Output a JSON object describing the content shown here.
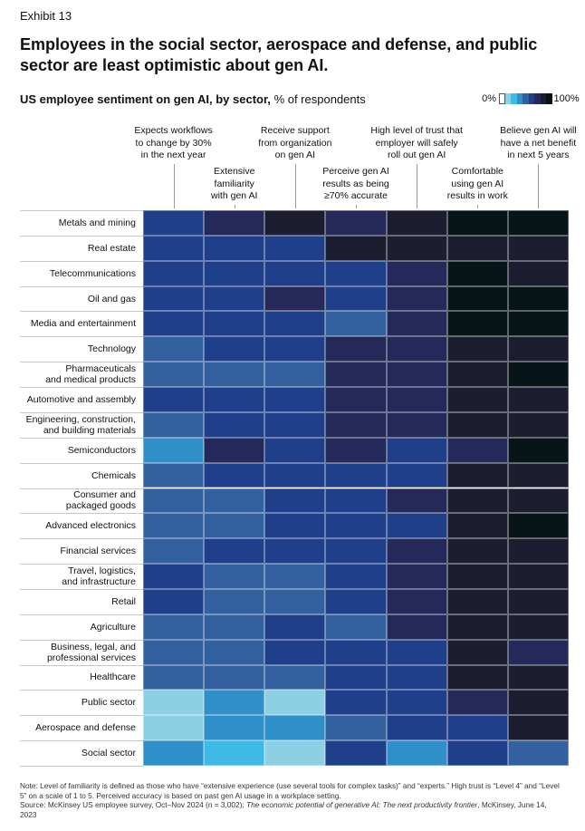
{
  "chart_data": {
    "type": "heatmap",
    "exhibit": "Exhibit 13",
    "title": "Employees in the social sector, aerospace and defense, and public sector are least optimistic about gen AI.",
    "subtitle": "US employee sentiment on gen AI, by sector,",
    "subtitle_unit": "% of respondents",
    "x_categories": [
      "Expects workflows\nto change by 30%\nin the next year",
      "Extensive\nfamiliarity\nwith gen AI",
      "Receive support\nfrom organization\non gen AI",
      "Perceive gen AI\nresults as being\n≥70% accurate",
      "High level of trust that\nemployer will safely\nroll out gen AI",
      "Comfortable\nusing gen AI\nresults in work",
      "Believe gen AI will\nhave a net benefit\nin next 5 years"
    ],
    "y_categories": [
      "Metals and mining",
      "Real estate",
      "Telecommunications",
      "Oil and gas",
      "Media and entertainment",
      "Technology",
      "Pharmaceuticals\nand medical products",
      "Automotive and assembly",
      "Engineering, construction,\nand building materials",
      "Semiconductors",
      "Chemicals",
      "Consumer and\npackaged goods",
      "Advanced electronics",
      "Financial services",
      "Travel, logistics,\nand infrastructure",
      "Retail",
      "Agriculture",
      "Business, legal, and\nprofessional services",
      "Healthcare",
      "Public sector",
      "Aerospace and defense",
      "Social sector"
    ],
    "values": [
      [
        61,
        72,
        85,
        72,
        83,
        94,
        94
      ],
      [
        63,
        64,
        64,
        86,
        84,
        82,
        82
      ],
      [
        62,
        63,
        62,
        60,
        74,
        93,
        82
      ],
      [
        57,
        56,
        75,
        62,
        74,
        93,
        93
      ],
      [
        62,
        57,
        62,
        55,
        74,
        92,
        92
      ],
      [
        50,
        62,
        57,
        74,
        73,
        82,
        82
      ],
      [
        55,
        55,
        54,
        74,
        74,
        82,
        91
      ],
      [
        56,
        56,
        61,
        73,
        73,
        82,
        83
      ],
      [
        50,
        56,
        61,
        74,
        73,
        82,
        83
      ],
      [
        42,
        74,
        62,
        73,
        63,
        71,
        91
      ],
      [
        55,
        62,
        56,
        62,
        64,
        82,
        83
      ],
      [
        50,
        55,
        56,
        61,
        74,
        81,
        82
      ],
      [
        50,
        50,
        56,
        62,
        62,
        82,
        90
      ],
      [
        50,
        56,
        56,
        62,
        74,
        81,
        81
      ],
      [
        56,
        51,
        50,
        62,
        74,
        82,
        82
      ],
      [
        56,
        51,
        55,
        62,
        73,
        82,
        82
      ],
      [
        51,
        51,
        63,
        50,
        74,
        82,
        82
      ],
      [
        51,
        51,
        56,
        62,
        64,
        82,
        74
      ],
      [
        51,
        50,
        51,
        62,
        63,
        84,
        84
      ],
      [
        18,
        40,
        18,
        62,
        56,
        74,
        82
      ],
      [
        18,
        40,
        40,
        51,
        56,
        63,
        83
      ],
      [
        41,
        28,
        18,
        63,
        40,
        63,
        51
      ]
    ],
    "clim": [
      0,
      100
    ],
    "colorbar_ticks": [
      {
        "value": 0,
        "label": "0%"
      },
      {
        "value": 100,
        "label": "100%"
      }
    ],
    "colors": [
      "#ffffff",
      "#8dd0e3",
      "#3dbbe5",
      "#2f8fc8",
      "#33609f",
      "#1f3f8a",
      "#25295a",
      "#1c1d30",
      "#071519"
    ],
    "note": "Note: Level of familiarity is defined as those who have “extensive experience (use several tools for complex tasks)” and “experts.” High trust is “Level 4” and “Level 5” on a scale of 1 to 5. Perceived accuracy is based on past gen AI usage in a workplace setting.",
    "source": "Source: McKinsey US employee survey, Oct–Nov 2024 (n = 3,002); ",
    "source_title": "The economic potential of generative AI: The next productivity frontier",
    "source_end": ", McKinsey, June 14, 2023"
  }
}
